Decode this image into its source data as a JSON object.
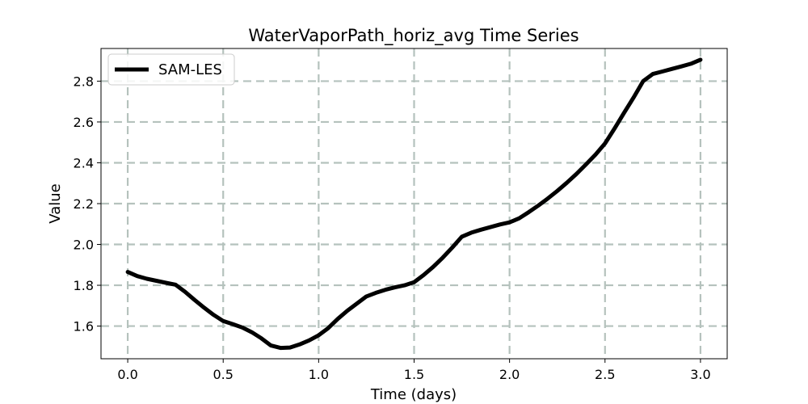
{
  "chart_data": {
    "type": "line",
    "title": "WaterVaporPath_horiz_avg Time Series",
    "xlabel": "Time (days)",
    "ylabel": "Value",
    "xlim": [
      -0.14,
      3.14
    ],
    "ylim": [
      1.44,
      2.96
    ],
    "xticks": [
      0.0,
      0.5,
      1.0,
      1.5,
      2.0,
      2.5,
      3.0
    ],
    "xtick_labels": [
      "0.0",
      "0.5",
      "1.0",
      "1.5",
      "2.0",
      "2.5",
      "3.0"
    ],
    "yticks": [
      1.6,
      1.8,
      2.0,
      2.2,
      2.4,
      2.6,
      2.8
    ],
    "ytick_labels": [
      "1.6",
      "1.8",
      "2.0",
      "2.2",
      "2.4",
      "2.6",
      "2.8"
    ],
    "grid": true,
    "legend": {
      "position": "top-left",
      "entries": [
        "SAM-LES"
      ]
    },
    "series": [
      {
        "name": "SAM-LES",
        "color": "#000000",
        "x": [
          0.0,
          0.05,
          0.1,
          0.15,
          0.2,
          0.25,
          0.3,
          0.35,
          0.4,
          0.45,
          0.5,
          0.55,
          0.6,
          0.65,
          0.7,
          0.75,
          0.8,
          0.85,
          0.9,
          0.95,
          1.0,
          1.05,
          1.1,
          1.15,
          1.2,
          1.25,
          1.3,
          1.35,
          1.4,
          1.45,
          1.5,
          1.55,
          1.6,
          1.65,
          1.7,
          1.75,
          1.8,
          1.85,
          1.9,
          1.95,
          2.0,
          2.05,
          2.1,
          2.15,
          2.2,
          2.25,
          2.3,
          2.35,
          2.4,
          2.45,
          2.5,
          2.55,
          2.6,
          2.65,
          2.7,
          2.75,
          2.8,
          2.85,
          2.9,
          2.95,
          3.0
        ],
        "y": [
          1.865,
          1.845,
          1.832,
          1.822,
          1.812,
          1.803,
          1.768,
          1.728,
          1.69,
          1.655,
          1.625,
          1.61,
          1.593,
          1.57,
          1.54,
          1.505,
          1.493,
          1.495,
          1.51,
          1.53,
          1.555,
          1.59,
          1.635,
          1.675,
          1.71,
          1.745,
          1.763,
          1.778,
          1.79,
          1.8,
          1.815,
          1.85,
          1.89,
          1.935,
          1.985,
          2.038,
          2.058,
          2.072,
          2.085,
          2.098,
          2.108,
          2.128,
          2.158,
          2.19,
          2.225,
          2.262,
          2.302,
          2.345,
          2.392,
          2.44,
          2.495,
          2.568,
          2.645,
          2.72,
          2.8,
          2.835,
          2.847,
          2.86,
          2.872,
          2.885,
          2.905
        ]
      }
    ]
  }
}
